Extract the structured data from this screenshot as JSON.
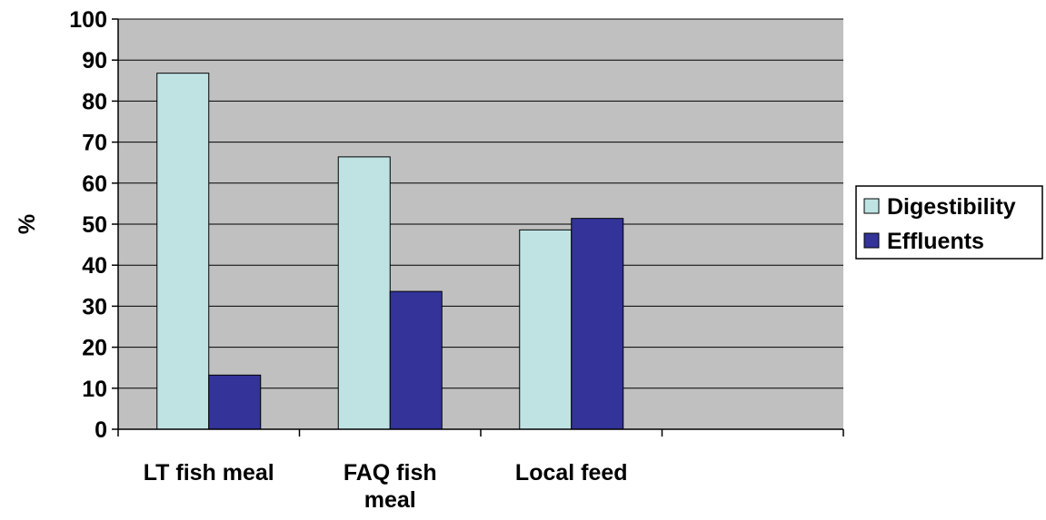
{
  "chart_data": {
    "type": "bar",
    "title": "",
    "xlabel": "",
    "ylabel": "%",
    "ylim": [
      0,
      100
    ],
    "yticks": [
      0,
      10,
      20,
      30,
      40,
      50,
      60,
      70,
      80,
      90,
      100
    ],
    "grid": true,
    "legend_position": "right",
    "categories": [
      "LT fish meal",
      "FAQ fish meal",
      "Local feed",
      ""
    ],
    "series": [
      {
        "name": "Digestibility",
        "values": [
          86.8,
          66.4,
          48.6,
          null
        ]
      },
      {
        "name": "Effluents",
        "values": [
          13.2,
          33.6,
          51.4,
          null
        ]
      }
    ],
    "colors": {
      "plot_background": "#C0C0C0",
      "grid": "#000000",
      "Digestibility": "#BFE3E3",
      "Effluents": "#33339A"
    }
  }
}
